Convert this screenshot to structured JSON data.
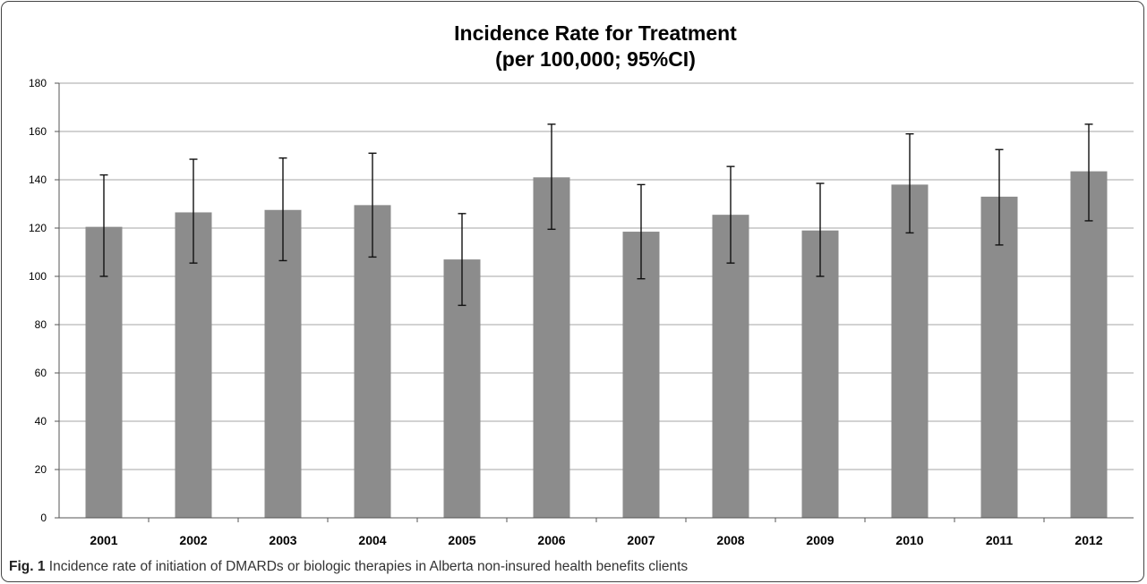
{
  "chart_data": {
    "type": "bar",
    "title": "Incidence Rate for Treatment",
    "subtitle": "(per 100,000; 95%CI)",
    "xlabel": "",
    "ylabel": "",
    "categories": [
      "2001",
      "2002",
      "2003",
      "2004",
      "2005",
      "2006",
      "2007",
      "2008",
      "2009",
      "2010",
      "2011",
      "2012"
    ],
    "values": [
      120.5,
      126.5,
      127.5,
      129.5,
      107,
      141,
      118.5,
      125.5,
      119,
      138,
      133,
      143.5
    ],
    "ci_low": [
      100,
      105.5,
      106.5,
      108,
      88,
      119.5,
      99,
      105.5,
      100,
      118,
      113,
      123
    ],
    "ci_high": [
      142,
      148.5,
      149,
      151,
      126,
      163,
      138,
      145.5,
      138.5,
      159,
      152.5,
      163
    ],
    "ylim": [
      0,
      180
    ],
    "yticks": [
      0,
      20,
      40,
      60,
      80,
      100,
      120,
      140,
      160,
      180
    ],
    "grid": true,
    "legend": "none",
    "bar_color": "#8c8c8c",
    "grid_color": "#a6a6a6"
  },
  "caption": {
    "label": "Fig. 1",
    "text": " Incidence rate of initiation of DMARDs or biologic therapies in Alberta non-insured health benefits clients"
  }
}
